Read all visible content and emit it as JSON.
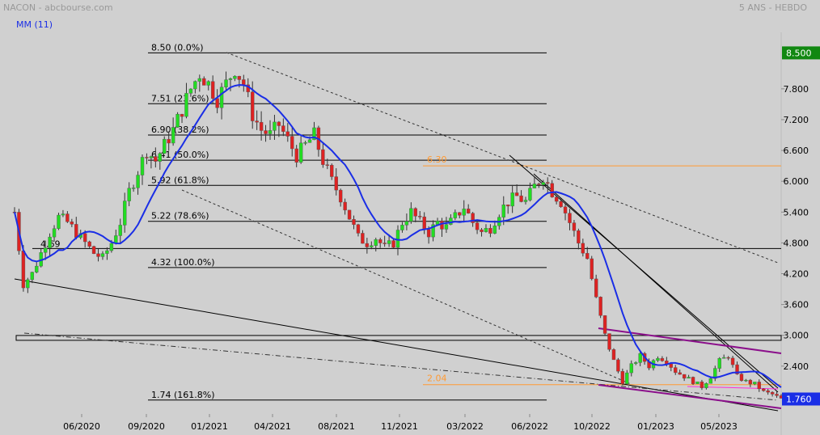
{
  "header": {
    "title": "NACON - abcbourse.com",
    "period": "5 ANS - HEBDO",
    "ma_label": "MM (11)"
  },
  "colors": {
    "background": "#d0d0d0",
    "up": "#22dd22",
    "down": "#dd2222",
    "ma": "#1a2ee6",
    "fib": "#000000",
    "orange": "#ff9a33",
    "purple": "#8b0f8b",
    "magenta": "#ff2bd8",
    "last_price_bg": "#1a2ee6",
    "high_price_bg": "#118811"
  },
  "chart_data": {
    "type": "candlestick",
    "title": "NACON - abcbourse.com",
    "subtitle": "5 ANS - HEBDO",
    "x_tick_labels": [
      "06/2020",
      "09/2020",
      "01/2021",
      "04/2021",
      "08/2021",
      "11/2021",
      "03/2022",
      "06/2022",
      "10/2022",
      "01/2023",
      "05/2023"
    ],
    "y_tick_labels": [
      "7.800",
      "7.200",
      "6.600",
      "6.000",
      "5.400",
      "4.800",
      "4.200",
      "3.600",
      "3.000",
      "2.400"
    ],
    "ylim": [
      1.5,
      8.9
    ],
    "last_price": "1.760",
    "high_price": "8.500",
    "moving_average": "MM (11)",
    "fib_levels": [
      {
        "price": 8.5,
        "label": "8.50  (0.0%)"
      },
      {
        "price": 7.51,
        "label": "7.51  (23.6%)"
      },
      {
        "price": 6.9,
        "label": "6.90  (38.2%)"
      },
      {
        "price": 6.41,
        "label": "6.41  (50.0%)"
      },
      {
        "price": 5.92,
        "label": "5.92  (61.8%)"
      },
      {
        "price": 5.22,
        "label": "5.22  (78.6%)"
      },
      {
        "price": 4.32,
        "label": "4.32  (100.0%)"
      },
      {
        "price": 1.74,
        "label": "1.74  (161.8%)"
      }
    ],
    "horizontal_levels": [
      {
        "price": 6.3,
        "label": "6.30"
      },
      {
        "price": 2.04,
        "label": "2.04"
      },
      {
        "price": 4.69,
        "label": "4.69"
      },
      {
        "price": 2.95,
        "label": ""
      }
    ],
    "price_path": [
      [
        0,
        5.4
      ],
      [
        2,
        4.0
      ],
      [
        4,
        4.2
      ],
      [
        6,
        4.6
      ],
      [
        8,
        5.0
      ],
      [
        10,
        5.3
      ],
      [
        12,
        5.2
      ],
      [
        14,
        5.0
      ],
      [
        16,
        4.8
      ],
      [
        18,
        4.6
      ],
      [
        20,
        4.5
      ],
      [
        22,
        4.8
      ],
      [
        24,
        5.2
      ],
      [
        26,
        5.8
      ],
      [
        28,
        6.2
      ],
      [
        30,
        6.6
      ],
      [
        32,
        6.4
      ],
      [
        34,
        6.7
      ],
      [
        36,
        7.0
      ],
      [
        38,
        7.4
      ],
      [
        40,
        7.8
      ],
      [
        42,
        8.1
      ],
      [
        44,
        7.9
      ],
      [
        46,
        7.6
      ],
      [
        48,
        7.9
      ],
      [
        50,
        8.2
      ],
      [
        52,
        7.9
      ],
      [
        54,
        7.3
      ],
      [
        56,
        7.0
      ],
      [
        58,
        6.9
      ],
      [
        60,
        7.1
      ],
      [
        62,
        6.8
      ],
      [
        64,
        6.5
      ],
      [
        66,
        6.7
      ],
      [
        68,
        6.9
      ],
      [
        70,
        6.4
      ],
      [
        72,
        6.0
      ],
      [
        74,
        5.7
      ],
      [
        76,
        5.3
      ],
      [
        78,
        4.9
      ],
      [
        80,
        4.8
      ],
      [
        82,
        4.9
      ],
      [
        84,
        4.7
      ],
      [
        86,
        4.8
      ],
      [
        88,
        5.2
      ],
      [
        90,
        5.4
      ],
      [
        92,
        5.2
      ],
      [
        94,
        5.0
      ],
      [
        96,
        5.2
      ],
      [
        98,
        5.1
      ],
      [
        100,
        5.3
      ],
      [
        102,
        5.5
      ],
      [
        104,
        5.2
      ],
      [
        106,
        5.0
      ],
      [
        108,
        5.1
      ],
      [
        110,
        5.4
      ],
      [
        112,
        5.6
      ],
      [
        114,
        5.7
      ],
      [
        116,
        5.6
      ],
      [
        118,
        5.9
      ],
      [
        120,
        6.1
      ],
      [
        122,
        5.8
      ],
      [
        124,
        5.6
      ],
      [
        126,
        5.2
      ],
      [
        128,
        4.8
      ],
      [
        130,
        4.5
      ],
      [
        132,
        3.7
      ],
      [
        134,
        3.0
      ],
      [
        136,
        2.5
      ],
      [
        138,
        2.1
      ],
      [
        140,
        2.4
      ],
      [
        142,
        2.6
      ],
      [
        144,
        2.4
      ],
      [
        146,
        2.6
      ],
      [
        148,
        2.5
      ],
      [
        150,
        2.3
      ],
      [
        152,
        2.2
      ],
      [
        154,
        2.1
      ],
      [
        156,
        2.0
      ],
      [
        158,
        2.2
      ],
      [
        160,
        2.5
      ],
      [
        162,
        2.6
      ],
      [
        164,
        2.2
      ],
      [
        166,
        2.1
      ],
      [
        168,
        2.05
      ],
      [
        170,
        1.9
      ],
      [
        172,
        1.85
      ],
      [
        174,
        1.76
      ]
    ]
  }
}
